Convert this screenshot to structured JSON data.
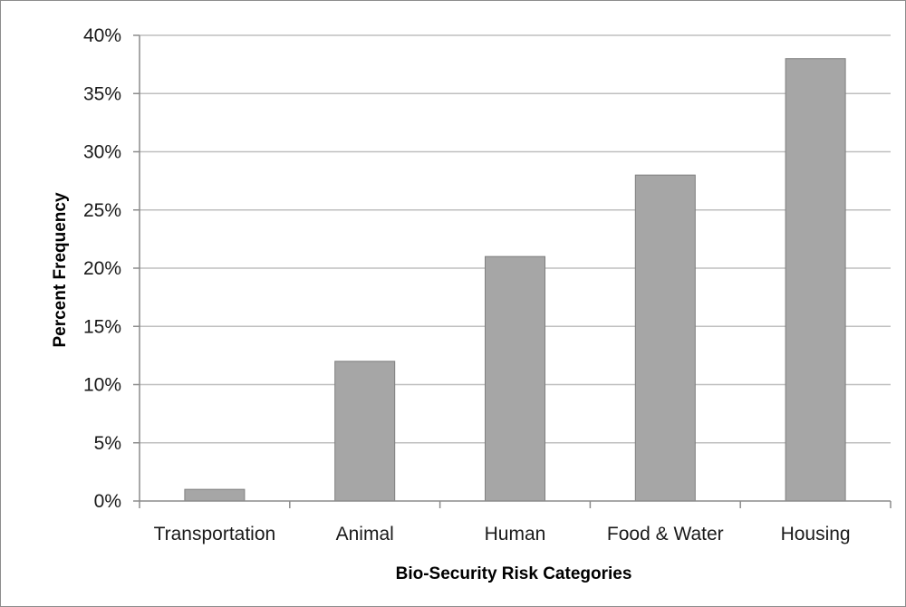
{
  "chart_data": {
    "type": "bar",
    "categories": [
      "Transportation",
      "Animal",
      "Human",
      "Food & Water",
      "Housing"
    ],
    "values": [
      1,
      12,
      21,
      28,
      38
    ],
    "title": "",
    "xlabel": "Bio-Security Risk Categories",
    "ylabel": "Percent Frequency",
    "ylim": [
      0,
      40
    ],
    "yticks": [
      "0%",
      "5%",
      "10%",
      "15%",
      "20%",
      "25%",
      "30%",
      "35%",
      "40%"
    ],
    "grid": true,
    "legend": "none",
    "bar_color": "#a6a6a6",
    "bar_edge_color": "#7f7f7f",
    "grid_color": "#bfbfbf"
  }
}
